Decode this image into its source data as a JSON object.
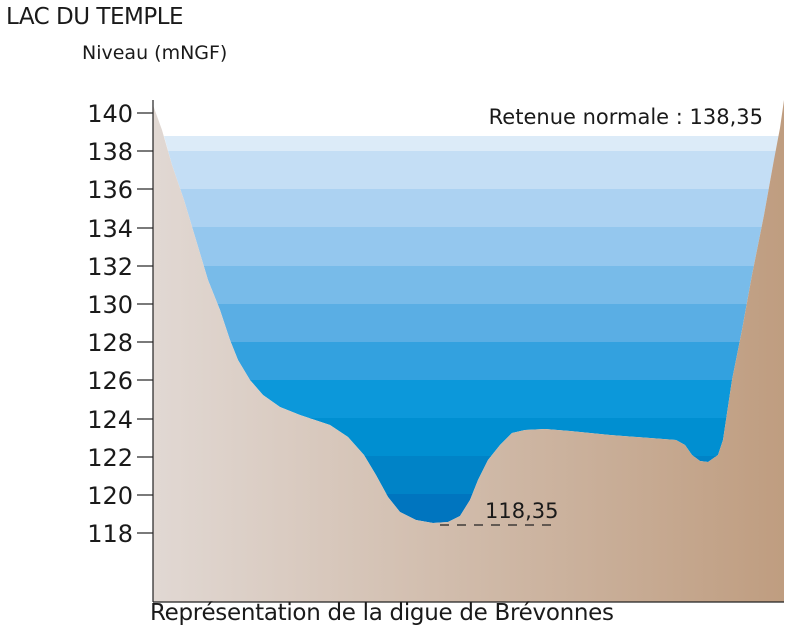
{
  "title": "LAC DU TEMPLE",
  "unit_label": "Niveau (mNGF)",
  "caption": "Représentation de la digue de Brévonnes",
  "normal_level": {
    "label": "Retenue normale : 138,35",
    "value": 138.35
  },
  "bottom_level": {
    "label": "118,35",
    "value": 118.35
  },
  "axis": {
    "ticks": [
      "140",
      "138",
      "136",
      "134",
      "132",
      "130",
      "128",
      "126",
      "124",
      "122",
      "120",
      "118"
    ]
  },
  "colors": {
    "water_top": "#dcebf8",
    "water_bottom": "#0075bf",
    "ground_left": "#e1d8d3",
    "ground_right": "#bf9d80",
    "axis": "#222222"
  }
}
